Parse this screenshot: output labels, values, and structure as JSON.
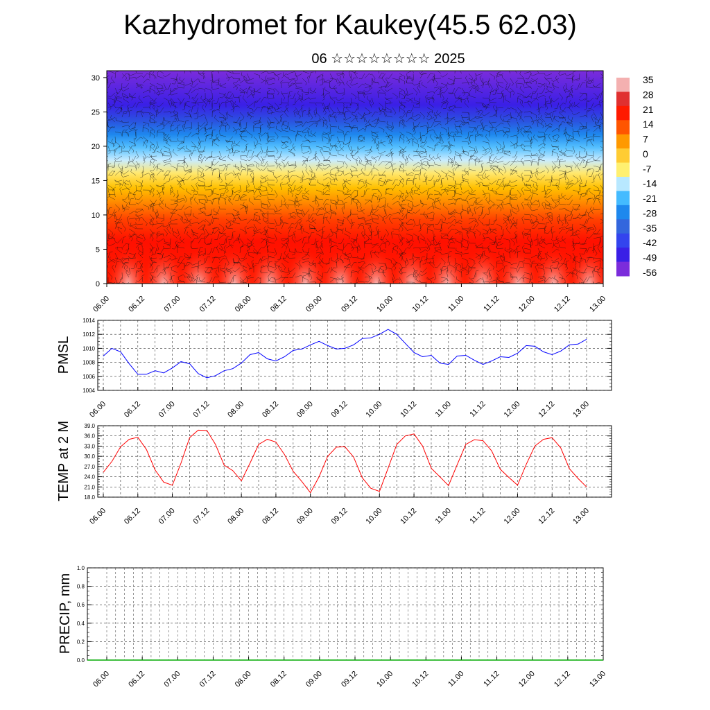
{
  "header": {
    "title": "Kazhydromet for Kaukey(45.5 62.03)",
    "subtitle": "06 ☆☆☆☆☆☆☆☆ 2025"
  },
  "colors": {
    "pmsl_line": "#0000ff",
    "temp_line": "#ff0000",
    "precip_line": "#00aa00"
  },
  "chart_data": [
    {
      "type": "heatmap",
      "name": "cross-section",
      "x_tick_labels": [
        "06.00",
        "06.12",
        "07.00",
        "07.12",
        "08.00",
        "08.12",
        "09.00",
        "09.12",
        "10.00",
        "10.12",
        "11.00",
        "11.12",
        "12.00",
        "12.12",
        "13.00"
      ],
      "y_ticks": [
        0,
        5,
        10,
        15,
        20,
        25,
        30
      ],
      "ylim": [
        0,
        31
      ],
      "colorbar_labels": [
        "35",
        "28",
        "21",
        "14",
        "7",
        "0",
        "-7",
        "-14",
        "-21",
        "-28",
        "-35",
        "-42",
        "-49",
        "-56"
      ],
      "colorbar_colors": [
        "#f4b0b0",
        "#e03030",
        "#ff1a00",
        "#ff5500",
        "#ff9900",
        "#ffcc33",
        "#fff070",
        "#b8e8ff",
        "#44bbff",
        "#1e88ee",
        "#3366dd",
        "#3344ee",
        "#3a1fe6",
        "#7b2cdb"
      ],
      "wind_barbs": true
    },
    {
      "type": "line",
      "name": "pmsl",
      "ylabel": "PMSL",
      "ylim": [
        1004,
        1014
      ],
      "y_ticks": [
        "1004",
        "1006",
        "1008",
        "1010",
        "1012",
        "1014"
      ],
      "x_tick_labels": [
        "06.00",
        "06.12",
        "07.00",
        "07.12",
        "08.00",
        "08.12",
        "09.00",
        "09.12",
        "10.00",
        "10.12",
        "11.00",
        "11.12",
        "12.00",
        "12.12",
        "13.00"
      ],
      "values": [
        1008.9,
        1010.0,
        1009.5,
        1007.8,
        1006.3,
        1006.3,
        1006.8,
        1006.5,
        1007.2,
        1008.1,
        1007.8,
        1006.4,
        1005.8,
        1006.1,
        1006.8,
        1007.1,
        1007.9,
        1009.1,
        1009.4,
        1008.5,
        1008.2,
        1008.8,
        1009.7,
        1009.9,
        1010.5,
        1011.0,
        1010.4,
        1009.9,
        1010.0,
        1010.5,
        1011.4,
        1011.5,
        1012.0,
        1012.7,
        1012.0,
        1010.7,
        1009.4,
        1008.8,
        1009.0,
        1007.9,
        1007.7,
        1008.9,
        1009.0,
        1008.3,
        1007.7,
        1008.2,
        1008.8,
        1008.7,
        1009.3,
        1010.4,
        1010.3,
        1009.5,
        1009.1,
        1009.6,
        1010.5,
        1010.6,
        1011.3
      ]
    },
    {
      "type": "line",
      "name": "temp2m",
      "ylabel": "TEMP at 2 M",
      "ylim": [
        18,
        39
      ],
      "y_ticks": [
        "18.0",
        "21.0",
        "24.0",
        "27.0",
        "30.0",
        "33.0",
        "36.0",
        "39.0"
      ],
      "x_tick_labels": [
        "06.00",
        "06.12",
        "07.00",
        "07.12",
        "08.00",
        "08.12",
        "09.00",
        "09.12",
        "10.00",
        "10.12",
        "11.00",
        "11.12",
        "12.00",
        "12.12",
        "13.00"
      ],
      "values": [
        25.3,
        28.5,
        32.8,
        35.0,
        35.6,
        32.0,
        26.0,
        22.4,
        21.5,
        28.0,
        35.5,
        37.7,
        37.6,
        33.5,
        27.4,
        25.8,
        22.8,
        28.0,
        33.5,
        35.0,
        34.2,
        30.5,
        25.6,
        22.6,
        19.3,
        24.0,
        30.0,
        32.7,
        32.8,
        29.8,
        23.7,
        20.6,
        19.7,
        26.5,
        33.5,
        36.0,
        36.6,
        33.0,
        26.5,
        24.0,
        21.4,
        27.5,
        33.5,
        34.9,
        34.6,
        31.6,
        26.2,
        23.8,
        21.5,
        27.6,
        33.0,
        35.0,
        35.5,
        32.5,
        26.4,
        23.5,
        21.0
      ]
    },
    {
      "type": "line",
      "name": "precip",
      "ylabel": "PRECIP, mm",
      "ylim": [
        0,
        1
      ],
      "y_ticks": [
        "0.0",
        "0.2",
        "0.4",
        "0.6",
        "0.8",
        "1.0"
      ],
      "x_tick_labels": [
        "06.00",
        "06.12",
        "07.00",
        "07.12",
        "08.00",
        "08.12",
        "09.00",
        "09.12",
        "10.00",
        "10.12",
        "11.00",
        "11.12",
        "12.00",
        "12.12",
        "13.00"
      ],
      "values": [
        0,
        0,
        0,
        0,
        0,
        0,
        0,
        0,
        0,
        0,
        0,
        0,
        0,
        0,
        0,
        0,
        0,
        0,
        0,
        0,
        0,
        0,
        0,
        0,
        0,
        0,
        0,
        0,
        0,
        0,
        0,
        0,
        0,
        0,
        0,
        0,
        0,
        0,
        0,
        0,
        0,
        0,
        0,
        0,
        0,
        0,
        0,
        0,
        0,
        0,
        0,
        0,
        0,
        0,
        0,
        0,
        0
      ]
    }
  ]
}
